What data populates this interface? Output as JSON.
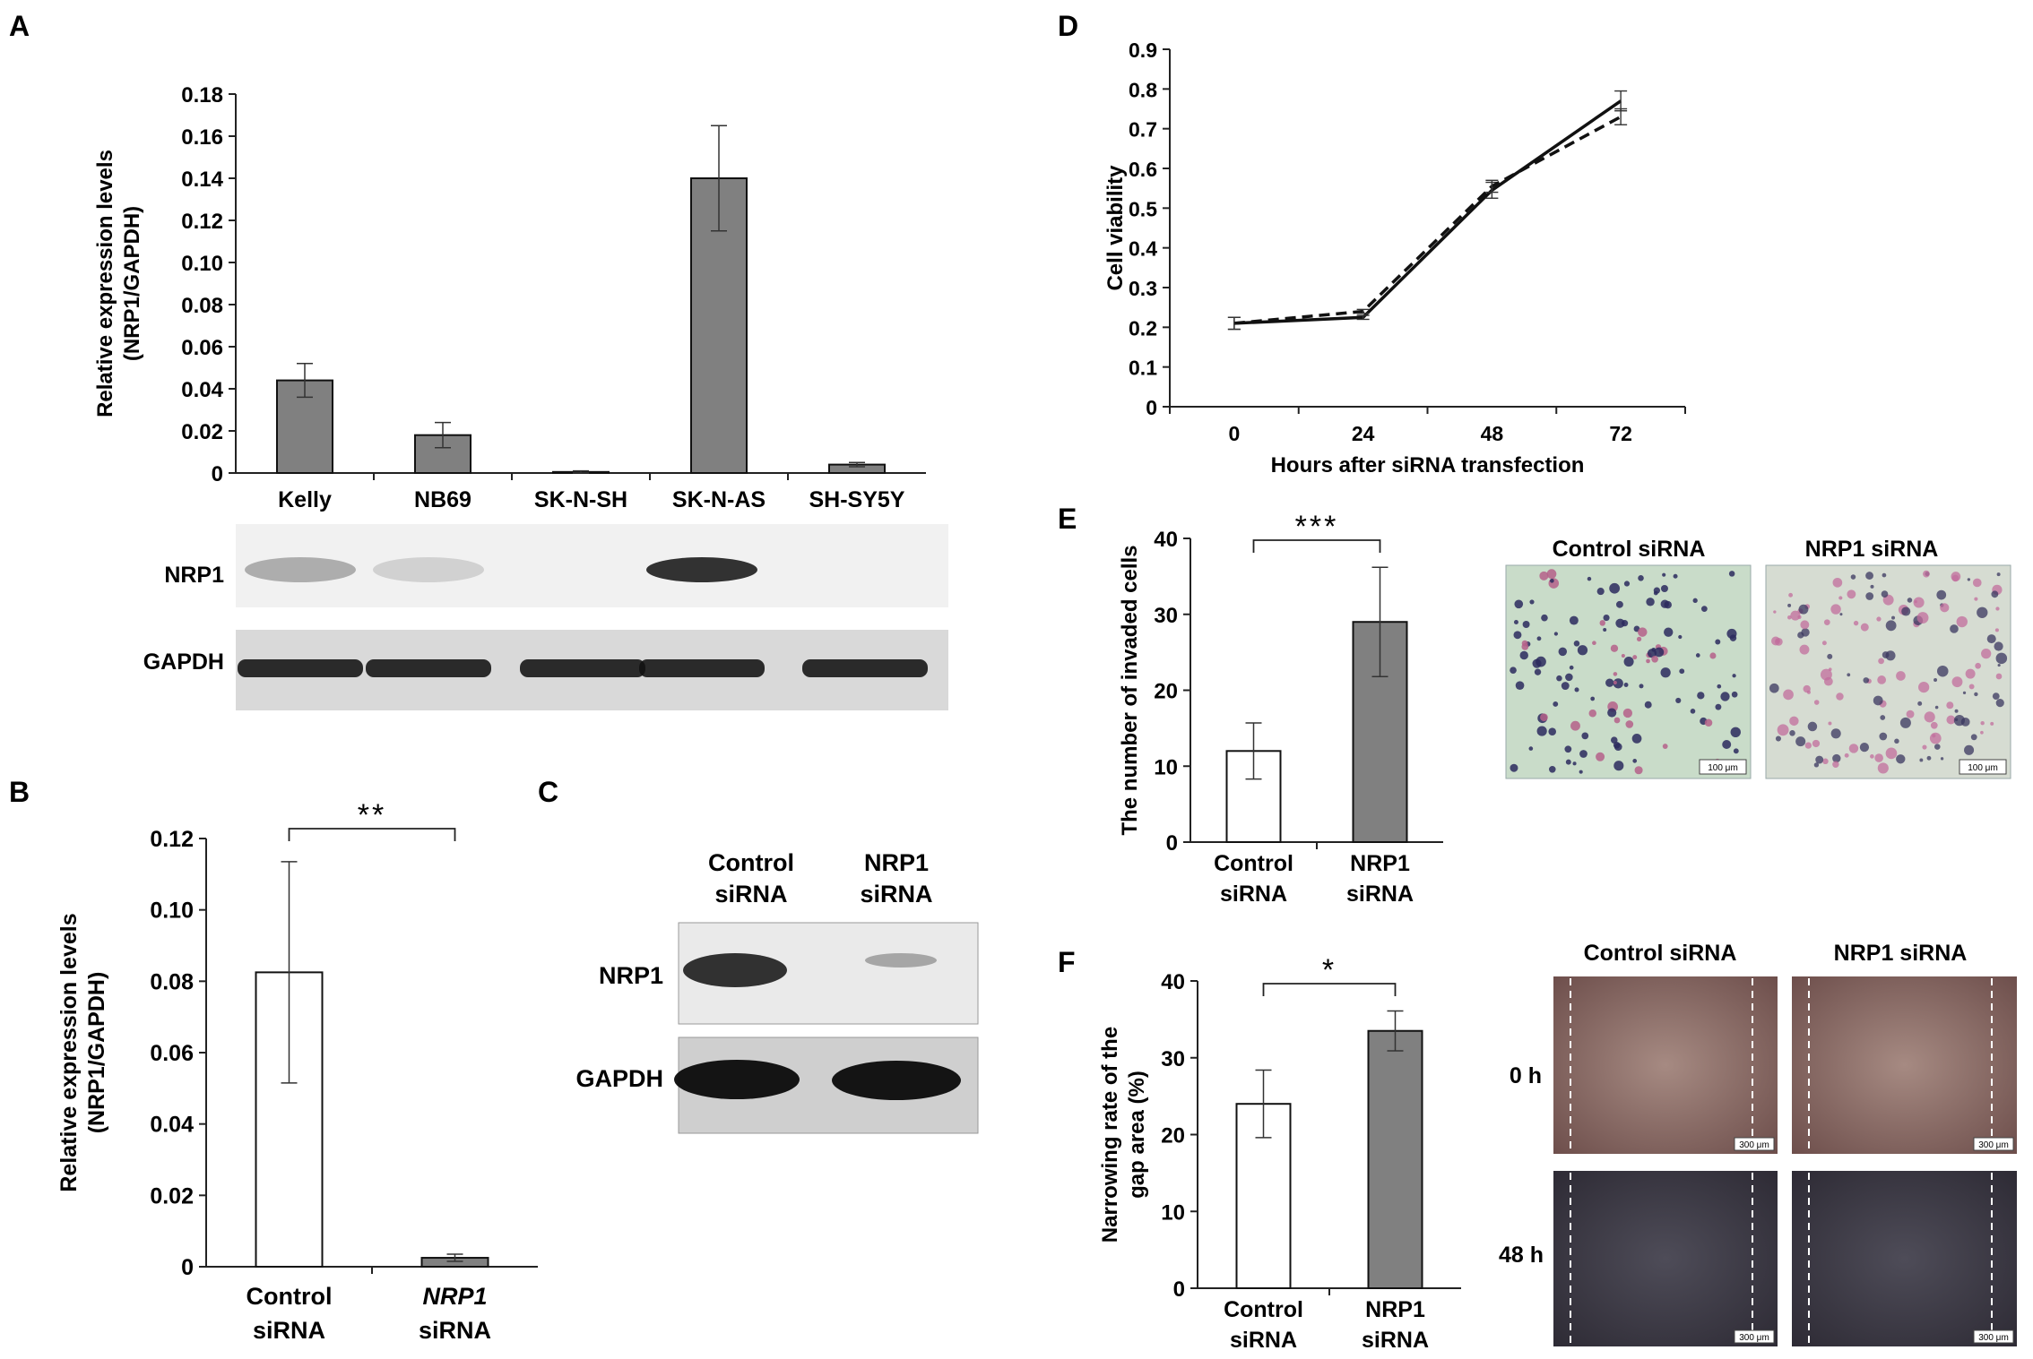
{
  "panel_letters": {
    "A": "A",
    "B": "B",
    "C": "C",
    "D": "D",
    "E": "E",
    "F": "F"
  },
  "blot_A": {
    "lanes": [
      "Kelly",
      "NB69",
      "SK-N-SH",
      "SK-N-AS",
      "SH-SY5Y"
    ],
    "row1": "NRP1",
    "row2": "GAPDH"
  },
  "blot_C": {
    "col1_line1": "Control",
    "col1_line2": "siRNA",
    "col2_line1": "NRP1",
    "col2_line2": "siRNA",
    "row1": "NRP1",
    "row2": "GAPDH"
  },
  "micro_E": {
    "col1": "Control siRNA",
    "col2": "NRP1 siRNA",
    "scale": "100 μm"
  },
  "micro_F": {
    "col1": "Control siRNA",
    "col2": "NRP1 siRNA",
    "row1": "0 h",
    "row2": "48 h",
    "scale": "300 μm"
  },
  "chart_data": [
    {
      "panel": "A",
      "type": "bar",
      "categories": [
        "Kelly",
        "NB69",
        "SK-N-SH",
        "SK-N-AS",
        "SH-SY5Y"
      ],
      "values": [
        0.044,
        0.018,
        0.0005,
        0.14,
        0.004
      ],
      "errors": [
        0.008,
        0.006,
        0.0005,
        0.025,
        0.001
      ],
      "ylabel_line1": "Relative expression levels",
      "ylabel_line2": "(NRP1/GAPDH)",
      "ylim": [
        0,
        0.18
      ],
      "yticks": [
        "0",
        "0.02",
        "0.04",
        "0.06",
        "0.08",
        "0.10",
        "0.12",
        "0.14",
        "0.16",
        "0.18"
      ],
      "bar_colors": [
        "#808080",
        "#808080",
        "#808080",
        "#808080",
        "#808080"
      ]
    },
    {
      "panel": "B",
      "type": "bar",
      "categories": [
        [
          "Control",
          "siRNA"
        ],
        [
          "NRP1",
          "siRNA"
        ]
      ],
      "values": [
        0.0825,
        0.0025
      ],
      "errors": [
        0.031,
        0.001
      ],
      "ylabel_line1": "Relative expression levels",
      "ylabel_line2": "(NRP1/GAPDH)",
      "ylim": [
        0,
        0.12
      ],
      "yticks": [
        "0",
        "0.02",
        "0.04",
        "0.06",
        "0.08",
        "0.10",
        "0.12"
      ],
      "significance": "**",
      "bar_colors": [
        "#ffffff",
        "#808080"
      ]
    },
    {
      "panel": "D",
      "type": "line",
      "x": [
        0,
        24,
        48,
        72
      ],
      "xticks": [
        "0",
        "24",
        "48",
        "72"
      ],
      "series": [
        {
          "values": [
            0.21,
            0.225,
            0.545,
            0.77
          ],
          "errors": [
            0.015,
            0.005,
            0.02,
            0.025
          ],
          "style": "solid"
        },
        {
          "values": [
            0.21,
            0.24,
            0.555,
            0.73
          ],
          "errors": [
            0.015,
            0.005,
            0.015,
            0.02
          ],
          "style": "dashed"
        }
      ],
      "xlabel": "Hours after siRNA transfection",
      "ylabel": "Cell viability",
      "ylim": [
        0,
        0.9
      ],
      "yticks": [
        "0",
        "0.1",
        "0.2",
        "0.3",
        "0.4",
        "0.5",
        "0.6",
        "0.7",
        "0.8",
        "0.9"
      ]
    },
    {
      "panel": "E",
      "type": "bar",
      "categories": [
        [
          "Control",
          "siRNA"
        ],
        [
          "NRP1",
          "siRNA"
        ]
      ],
      "values": [
        12,
        29
      ],
      "errors": [
        3.7,
        7.2
      ],
      "ylabel": "The number of invaded cells",
      "ylim": [
        0,
        40
      ],
      "yticks": [
        "0",
        "10",
        "20",
        "30",
        "40"
      ],
      "significance": "***",
      "bar_colors": [
        "#ffffff",
        "#808080"
      ]
    },
    {
      "panel": "F",
      "type": "bar",
      "categories": [
        [
          "Control",
          "siRNA"
        ],
        [
          "NRP1",
          "siRNA"
        ]
      ],
      "values": [
        24,
        33.5
      ],
      "errors": [
        4.4,
        2.6
      ],
      "ylabel_line1": "Narrowing rate of the",
      "ylabel_line2": "gap area (%)",
      "ylim": [
        0,
        40
      ],
      "yticks": [
        "0",
        "10",
        "20",
        "30",
        "40"
      ],
      "significance": "*",
      "bar_colors": [
        "#ffffff",
        "#808080"
      ]
    }
  ]
}
